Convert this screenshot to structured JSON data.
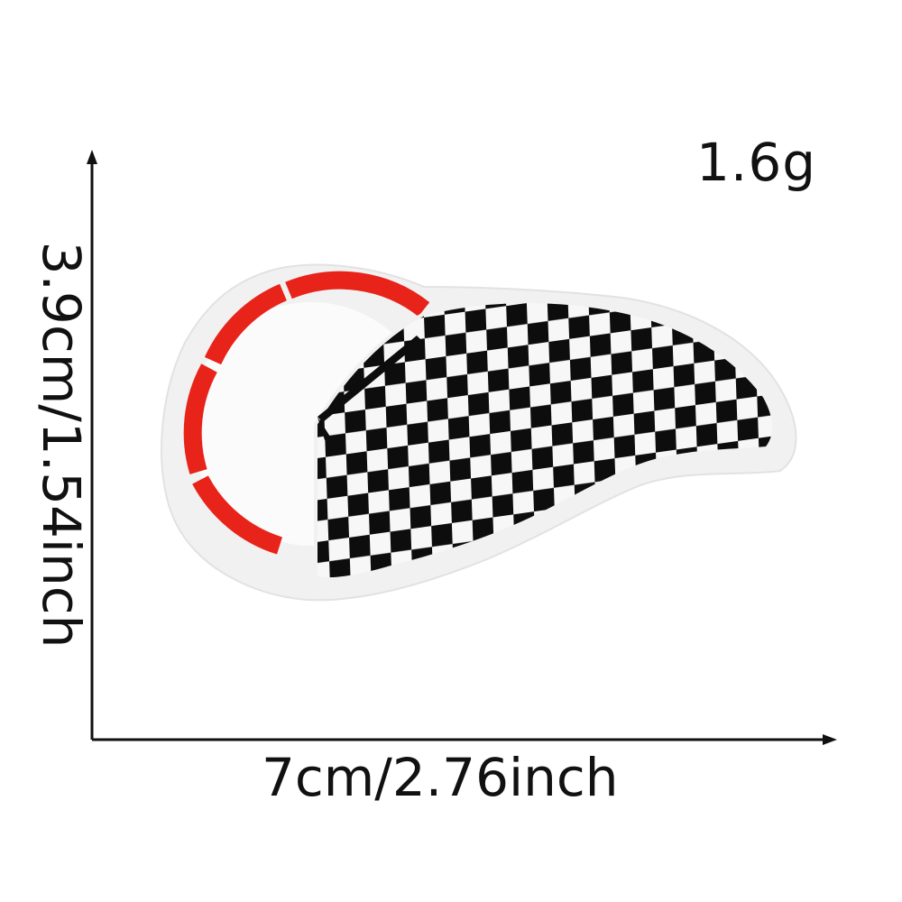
{
  "labels": {
    "weight": "1.6g",
    "width": "7cm/2.76inch",
    "height": "3.9cm/1.54inch"
  },
  "patch": {
    "description_colors": {
      "gauge_arc": "#e8231a",
      "checker_dark": "#0d0d0d",
      "checker_light": "#fafafa",
      "border": "#f1f1f1"
    }
  }
}
